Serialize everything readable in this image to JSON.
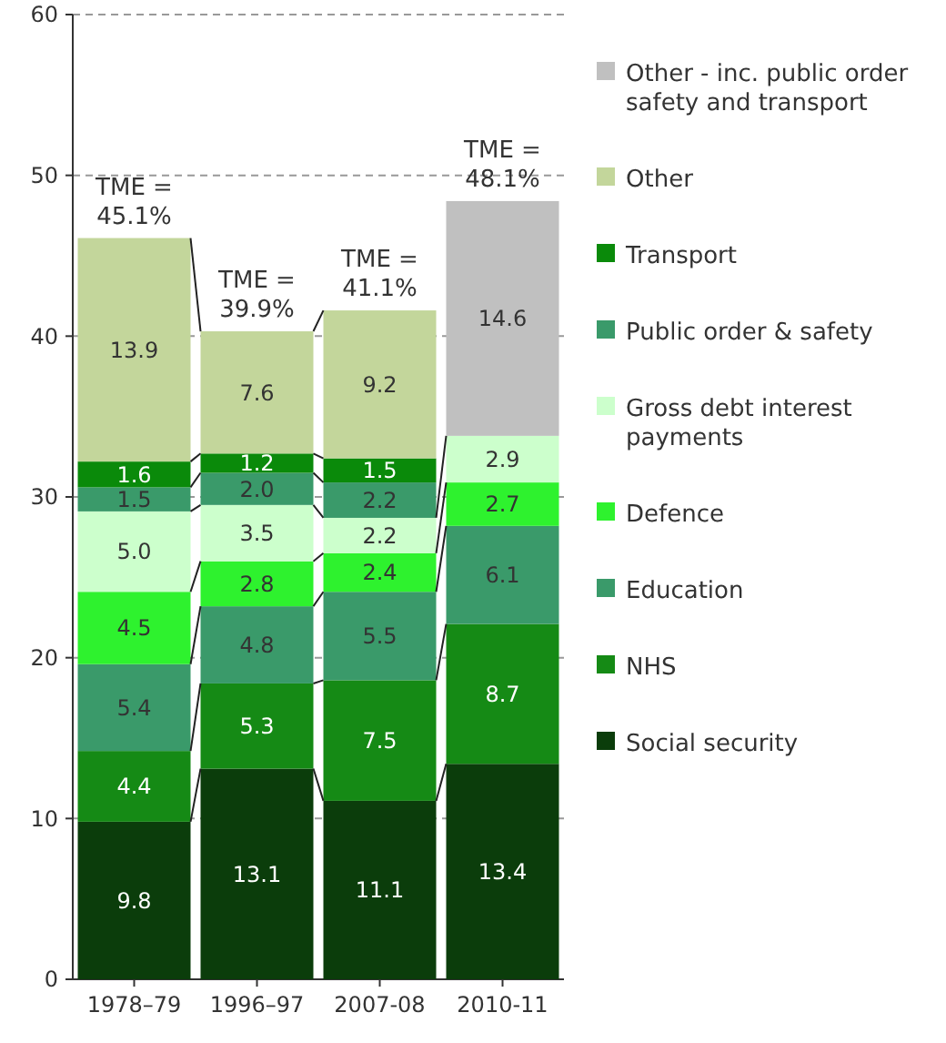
{
  "chart_data": {
    "type": "bar",
    "stacked": true,
    "categories": [
      "1978–79",
      "1996–97",
      "2007-08",
      "2010-11"
    ],
    "series": [
      {
        "name": "Social security",
        "color": "#0b3d0b",
        "values": [
          9.8,
          13.1,
          11.1,
          13.4
        ],
        "value_labels": [
          "9.8",
          "13.1",
          "11.1",
          "13.4"
        ]
      },
      {
        "name": "NHS",
        "color": "#158a15",
        "values": [
          4.4,
          5.3,
          7.5,
          8.7
        ],
        "value_labels": [
          "4.4",
          "5.3",
          "7.5",
          "8.7"
        ]
      },
      {
        "name": "Education",
        "color": "#3a9a6a",
        "values": [
          5.4,
          4.8,
          5.5,
          6.1
        ],
        "value_labels": [
          "5.4",
          "4.8",
          "5.5",
          "6.1"
        ]
      },
      {
        "name": "Defence",
        "color": "#2ef22e",
        "values": [
          4.5,
          2.8,
          2.4,
          2.7
        ],
        "value_labels": [
          "4.5",
          "2.8",
          "2.4",
          "2.7"
        ]
      },
      {
        "name": "Gross debt interest payments",
        "color": "#ccffcc",
        "values": [
          5,
          3.5,
          2.2,
          2.9
        ],
        "value_labels": [
          "5.0",
          "3.5",
          "2.2",
          "2.9"
        ]
      },
      {
        "name": "Public order & safety",
        "color": "#3a9a6a",
        "values": [
          1.5,
          2,
          2.2,
          null
        ],
        "value_labels": [
          "1.5",
          "2.0",
          "2.2",
          null
        ]
      },
      {
        "name": "Transport",
        "color": "#0a8a0a",
        "values": [
          1.6,
          1.2,
          1.5,
          null
        ],
        "value_labels": [
          "1.6",
          "1.2",
          "1.5",
          null
        ]
      },
      {
        "name": "Other",
        "color": "#c3d69b",
        "values": [
          13.9,
          7.6,
          9.2,
          null
        ],
        "value_labels": [
          "13.9",
          "7.6",
          "9.2",
          null
        ]
      },
      {
        "name": "Other - inc. public order safety and transport",
        "color": "#c0c0c0",
        "values": [
          null,
          null,
          null,
          14.6
        ],
        "value_labels": [
          null,
          null,
          null,
          "14.6"
        ]
      }
    ],
    "ylim": [
      0,
      60
    ],
    "yticks": [
      0,
      10,
      20,
      30,
      40,
      50,
      60
    ],
    "grid": "y",
    "legend": "right",
    "annotations": [
      {
        "text": "TME = 45.1%",
        "x": "1978–79",
        "y": 46.1
      },
      {
        "text": "TME = 39.9%",
        "x": "1996–97",
        "y": 40.3
      },
      {
        "text": "TME = 41.1%",
        "x": "2007-08",
        "y": 41.6
      },
      {
        "text": "TME = 48.1%",
        "x": "2010-11",
        "y": 48.4
      }
    ]
  }
}
